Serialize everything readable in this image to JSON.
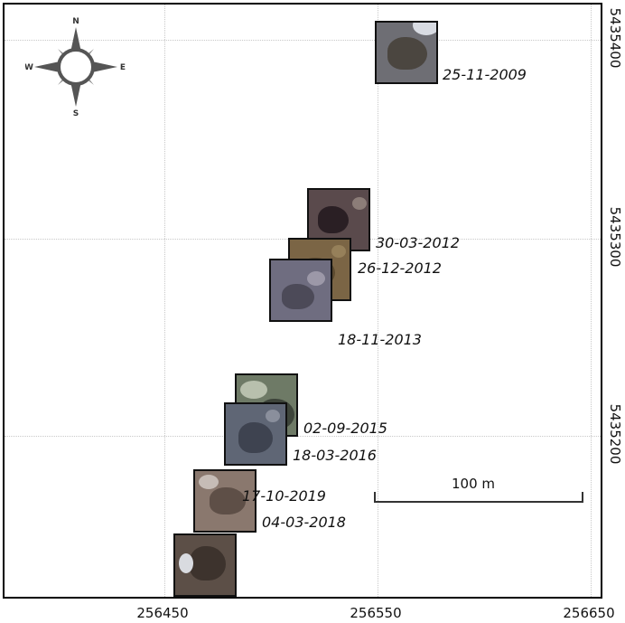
{
  "map": {
    "x_ticks": [
      "256450",
      "256550",
      "256650"
    ],
    "y_ticks": [
      "5435400",
      "5435300",
      "5435200"
    ],
    "scale_label": "100 m",
    "compass": {
      "n": "N",
      "s": "S",
      "e": "E",
      "w": "W"
    }
  },
  "snapshots": [
    {
      "date": "25-11-2009",
      "colors": {
        "bg": "#6e6e74",
        "blob": "#4b4640",
        "spot": "#d8dbe2"
      }
    },
    {
      "date": "30-03-2012",
      "colors": {
        "bg": "#5a4a4c",
        "blob": "#2a1f24",
        "spot": "#8c7d78"
      }
    },
    {
      "date": "26-12-2012",
      "colors": {
        "bg": "#7b6545",
        "blob": "#5c4a2f",
        "spot": "#96805a"
      }
    },
    {
      "date": "18-11-2013",
      "colors": {
        "bg": "#6f6d80",
        "blob": "#4c4a58",
        "spot": "#9c98a8"
      }
    },
    {
      "date": "02-09-2015",
      "colors": {
        "bg": "#6e7a66",
        "blob": "#3d443a",
        "spot": "#b8c0ad"
      }
    },
    {
      "date": "18-03-2016",
      "colors": {
        "bg": "#5f6675",
        "blob": "#3e4350",
        "spot": "#8a8f9c"
      }
    },
    {
      "date": "04-03-2018",
      "colors": {
        "bg": "#8a786e",
        "blob": "#5e4f47",
        "spot": "#c6bcb6"
      }
    },
    {
      "date": "17-10-2019",
      "colors": {
        "bg": "#5c4f47",
        "blob": "#3d332d",
        "spot": "#d9dbe0"
      }
    }
  ]
}
